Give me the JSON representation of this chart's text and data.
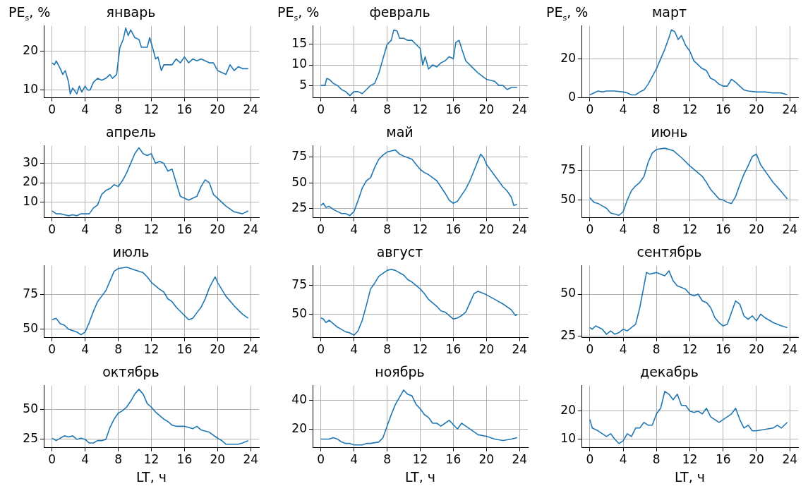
{
  "chart_data": [
    {
      "type": "line",
      "title": "январь",
      "ylabel": "PE$_{s}$, %",
      "color": "#1f77b4",
      "xlim": [
        -1,
        25
      ],
      "xticks": [
        0,
        4,
        8,
        12,
        16,
        20,
        24
      ],
      "ylim": [
        8,
        26.5
      ],
      "yticks": [
        10,
        20
      ],
      "grid": true,
      "x": [
        0,
        0.3,
        0.5,
        1,
        1.3,
        1.6,
        2,
        2.2,
        2.5,
        3,
        3.3,
        3.6,
        4,
        4.3,
        4.6,
        5,
        5.5,
        6,
        6.5,
        7,
        7.3,
        7.8,
        8.2,
        8.6,
        8.9,
        9.2,
        9.5,
        10,
        10.5,
        10.8,
        11.5,
        11.8,
        12.2,
        12.5,
        12.8,
        13.2,
        13.5,
        14.5,
        15,
        15.5,
        16,
        16.5,
        17,
        17.5,
        18,
        19,
        19.5,
        20,
        21,
        21.5,
        22,
        22.5,
        23,
        23.7
      ],
      "values": [
        17,
        16.5,
        17.5,
        15.5,
        14,
        15,
        12,
        9,
        10.5,
        9,
        11,
        9.5,
        11,
        10,
        10,
        12,
        13,
        12.5,
        13,
        14,
        13,
        14,
        21,
        23,
        26,
        24,
        25.5,
        23.5,
        23,
        21,
        21,
        23.5,
        20.5,
        18,
        18.5,
        15,
        16.5,
        16.5,
        18,
        17,
        18.5,
        17,
        18,
        17.5,
        18,
        17,
        17,
        15,
        14,
        16.5,
        15,
        16,
        15.5,
        15.5
      ]
    },
    {
      "type": "line",
      "title": "февраль",
      "ylabel": "PE$_{s}$, %",
      "color": "#1f77b4",
      "xlim": [
        -1,
        25
      ],
      "xticks": [
        0,
        4,
        8,
        12,
        16,
        20,
        24
      ],
      "ylim": [
        2,
        19.5
      ],
      "yticks": [
        5,
        10,
        15
      ],
      "grid": true,
      "x": [
        0,
        0.5,
        0.7,
        1,
        1.5,
        2,
        2.5,
        3,
        3.5,
        4,
        4.5,
        5,
        5.5,
        6,
        6.5,
        7,
        7.5,
        8,
        8.5,
        8.8,
        9.2,
        9.5,
        10,
        10.5,
        11,
        11.5,
        12,
        12.3,
        12.6,
        13,
        13.5,
        14,
        14.5,
        15,
        15.5,
        16,
        16.3,
        16.7,
        17,
        17.5,
        18,
        18.5,
        19,
        20,
        21,
        21.5,
        22,
        22.5,
        23,
        23.7
      ],
      "values": [
        5,
        5,
        6.7,
        6.5,
        5.5,
        5,
        4,
        3.5,
        2.5,
        3.5,
        3.5,
        3,
        4,
        5,
        5.5,
        8,
        11.5,
        15,
        16,
        18.5,
        18.3,
        16.5,
        16.5,
        16,
        16,
        15,
        14,
        10,
        12,
        9,
        10,
        9.5,
        10.5,
        11,
        12,
        11.5,
        15.5,
        16,
        14,
        11,
        10,
        9,
        8,
        6.5,
        6,
        5,
        5,
        4,
        4.5,
        4.5
      ]
    },
    {
      "type": "line",
      "title": "март",
      "ylabel": "PE$_{s}$, %",
      "color": "#1f77b4",
      "xlim": [
        -1,
        25
      ],
      "xticks": [
        0,
        4,
        8,
        12,
        16,
        20,
        24
      ],
      "ylim": [
        0,
        37
      ],
      "yticks": [
        0,
        20
      ],
      "grid": true,
      "x": [
        0,
        0.5,
        1,
        1.5,
        2,
        3,
        4,
        4.5,
        5,
        5.5,
        6,
        6.5,
        7,
        7.5,
        8,
        8.5,
        9,
        9.5,
        9.8,
        10.2,
        10.6,
        11,
        11.5,
        12,
        12.5,
        13,
        13.5,
        14,
        14.5,
        15,
        15.5,
        16,
        16.5,
        17,
        17.5,
        18,
        18.5,
        19,
        20,
        21,
        22,
        23,
        23.7
      ],
      "values": [
        1.5,
        2.5,
        3.5,
        3,
        3.5,
        3.5,
        3,
        2.5,
        1.5,
        1.5,
        3,
        4,
        7,
        11,
        15,
        20,
        25,
        31,
        35,
        34,
        30,
        32,
        27,
        24,
        19,
        17,
        15,
        14,
        10,
        9,
        7,
        6,
        6,
        9.5,
        8,
        6,
        4,
        3.5,
        3,
        3,
        2.5,
        2.5,
        1.5
      ]
    },
    {
      "type": "line",
      "title": "апрель",
      "color": "#1f77b4",
      "xlim": [
        -1,
        25
      ],
      "xticks": [
        0,
        4,
        8,
        12,
        16,
        20,
        24
      ],
      "ylim": [
        2,
        39
      ],
      "yticks": [
        10,
        20,
        30
      ],
      "grid": true,
      "x": [
        0,
        0.5,
        1,
        1.5,
        2,
        2.5,
        3,
        3.5,
        4,
        4.5,
        5,
        5.5,
        6,
        6.5,
        7,
        7.5,
        8,
        8.5,
        9,
        9.5,
        10,
        10.5,
        11,
        11.5,
        12,
        12.5,
        13,
        13.5,
        14,
        14.5,
        15,
        15.5,
        16,
        16.5,
        17,
        17.5,
        18,
        18.5,
        19,
        19.5,
        20,
        20.5,
        21,
        22,
        23,
        23.7
      ],
      "values": [
        5.5,
        4,
        4,
        3.5,
        3,
        3.5,
        3,
        4,
        4,
        4,
        7,
        8.5,
        14,
        16,
        17,
        19,
        18,
        21,
        25,
        30,
        35,
        38,
        35,
        34,
        35,
        30,
        31,
        30,
        26,
        27,
        20,
        13,
        12,
        11,
        12,
        13,
        18,
        21.5,
        20,
        14,
        12,
        10,
        8,
        5,
        4,
        5.5
      ]
    },
    {
      "type": "line",
      "title": "май",
      "color": "#1f77b4",
      "xlim": [
        -1,
        25
      ],
      "xticks": [
        0,
        4,
        8,
        12,
        16,
        20,
        24
      ],
      "ylim": [
        16,
        86
      ],
      "yticks": [
        25,
        50,
        75
      ],
      "grid": true,
      "x": [
        0,
        0.3,
        0.6,
        1,
        1.5,
        2,
        2.5,
        3,
        3.5,
        4,
        4.5,
        5,
        5.5,
        6,
        6.5,
        7,
        7.5,
        8,
        8.5,
        9,
        9.5,
        10,
        11,
        11.5,
        12,
        12.5,
        13,
        14,
        14.5,
        15,
        15.5,
        16,
        16.5,
        17,
        17.5,
        18,
        18.5,
        19,
        19.3,
        19.7,
        20,
        21,
        22,
        22.5,
        23,
        23.3,
        23.7
      ],
      "values": [
        28,
        30,
        26,
        27,
        24,
        22,
        20,
        20,
        18,
        22,
        33,
        45,
        52,
        55,
        65,
        73,
        77,
        80,
        81,
        82,
        78,
        76,
        73,
        68,
        63,
        60,
        58,
        52,
        46,
        40,
        33,
        30,
        32,
        38,
        44,
        52,
        62,
        72,
        78,
        74,
        68,
        57,
        46,
        42,
        36,
        28,
        29
      ]
    },
    {
      "type": "line",
      "title": "июнь",
      "color": "#1f77b4",
      "xlim": [
        -1,
        25
      ],
      "xticks": [
        0,
        4,
        8,
        12,
        16,
        20,
        24
      ],
      "ylim": [
        35,
        96
      ],
      "yticks": [
        50,
        75
      ],
      "grid": true,
      "x": [
        0,
        0.5,
        1,
        1.5,
        2,
        2.5,
        3,
        3.5,
        4,
        4.5,
        5,
        5.5,
        6,
        6.5,
        7,
        7.5,
        8,
        9,
        10,
        11,
        12,
        12.5,
        13,
        13.5,
        14,
        14.5,
        15,
        15.5,
        16,
        16.5,
        17,
        17.5,
        18,
        18.5,
        19,
        19.5,
        20,
        20.5,
        21,
        22,
        23,
        23.7
      ],
      "values": [
        52,
        48,
        47,
        45,
        43,
        39,
        38,
        37,
        40,
        50,
        58,
        62,
        65,
        70,
        82,
        90,
        93,
        94,
        92,
        86,
        79,
        76,
        73,
        70,
        65,
        59,
        55,
        51,
        50,
        48,
        47,
        53,
        63,
        72,
        79,
        87,
        89,
        80,
        75,
        65,
        57,
        51
      ]
    },
    {
      "type": "line",
      "title": "июль",
      "color": "#1f77b4",
      "xlim": [
        -1,
        25
      ],
      "xticks": [
        0,
        4,
        8,
        12,
        16,
        20,
        24
      ],
      "ylim": [
        44,
        96
      ],
      "yticks": [
        50,
        75
      ],
      "grid": true,
      "x": [
        0,
        0.5,
        1,
        1.5,
        2,
        2.5,
        3,
        3.5,
        4,
        4.5,
        5,
        5.5,
        6,
        6.5,
        7,
        7.5,
        8,
        9,
        10,
        11,
        11.5,
        12,
        13,
        13.5,
        14,
        14.5,
        15,
        16,
        16.5,
        17,
        17.5,
        18,
        18.5,
        19,
        19.7,
        20,
        20.5,
        21,
        22,
        23,
        23.7
      ],
      "values": [
        57,
        58,
        54,
        53,
        50,
        49,
        48,
        46,
        48,
        55,
        63,
        70,
        74,
        78,
        85,
        92,
        94,
        95,
        93,
        91,
        88,
        84,
        79,
        77,
        72,
        70,
        66,
        60,
        57,
        58,
        62,
        66,
        72,
        80,
        88,
        84,
        79,
        74,
        67,
        61,
        58
      ]
    },
    {
      "type": "line",
      "title": "август",
      "color": "#1f77b4",
      "xlim": [
        -1,
        25
      ],
      "xticks": [
        0,
        4,
        8,
        12,
        16,
        20,
        24
      ],
      "ylim": [
        30,
        92
      ],
      "yticks": [
        50,
        75
      ],
      "grid": true,
      "x": [
        0,
        0.3,
        0.6,
        1,
        1.5,
        2,
        2.5,
        3,
        3.5,
        4,
        4.5,
        5,
        5.5,
        6,
        6.5,
        7,
        8,
        8.5,
        9,
        10,
        10.5,
        11,
        12,
        12.5,
        13,
        13.5,
        14,
        14.5,
        15,
        16,
        16.5,
        17,
        17.5,
        18,
        18.5,
        19,
        20,
        21,
        22,
        23,
        23.5,
        23.7
      ],
      "values": [
        47,
        46,
        43,
        45,
        42,
        39,
        37,
        35,
        34,
        32,
        36,
        45,
        58,
        72,
        77,
        83,
        88,
        89,
        88,
        84,
        80,
        78,
        72,
        68,
        63,
        60,
        57,
        53,
        52,
        46,
        47,
        49,
        52,
        60,
        68,
        70,
        67,
        63,
        59,
        54,
        49,
        50
      ]
    },
    {
      "type": "line",
      "title": "сентябрь",
      "color": "#1f77b4",
      "xlim": [
        -1,
        25
      ],
      "xticks": [
        0,
        4,
        8,
        12,
        16,
        20,
        24
      ],
      "ylim": [
        24,
        67
      ],
      "yticks": [
        25,
        50
      ],
      "grid": true,
      "x": [
        0,
        0.3,
        0.7,
        1.5,
        2,
        2.5,
        3,
        3.5,
        4,
        4.5,
        5,
        5.5,
        6,
        6.5,
        6.8,
        7.2,
        8,
        8.5,
        9,
        9.5,
        10,
        10.5,
        11,
        11.5,
        12,
        12.5,
        13,
        13.5,
        14,
        14.5,
        15,
        15.5,
        16,
        16.5,
        17,
        17.5,
        18,
        18.5,
        19,
        19.5,
        20,
        20.5,
        21,
        22,
        23,
        23.7
      ],
      "values": [
        30,
        29,
        31,
        29,
        26,
        28,
        26,
        27,
        29,
        28,
        30,
        32,
        42,
        55,
        63,
        62,
        63,
        62,
        61,
        64,
        58,
        55,
        54,
        53,
        50,
        49,
        50,
        46,
        45,
        42,
        36,
        33,
        31,
        32,
        39,
        46,
        44,
        37,
        35,
        37,
        34,
        38,
        36,
        33,
        31,
        30
      ]
    },
    {
      "type": "line",
      "title": "октябрь",
      "xlabel": "LT, ч",
      "color": "#1f77b4",
      "xlim": [
        -1,
        25
      ],
      "xticks": [
        0,
        4,
        8,
        12,
        16,
        20,
        24
      ],
      "ylim": [
        18,
        70
      ],
      "yticks": [
        25,
        50
      ],
      "grid": true,
      "x": [
        0,
        0.5,
        1,
        1.5,
        2,
        2.5,
        3,
        3.5,
        4,
        4.5,
        5,
        5.5,
        6,
        6.5,
        7,
        7.5,
        8,
        8.5,
        9,
        9.5,
        10,
        10.5,
        11,
        11.5,
        12,
        12.5,
        13,
        13.5,
        14,
        14.5,
        15,
        16,
        16.5,
        17,
        17.5,
        18,
        19,
        20,
        20.5,
        21,
        22,
        22.5,
        23,
        23.7
      ],
      "values": [
        26,
        24,
        26,
        28,
        27,
        28,
        25,
        26,
        25,
        22,
        22,
        24,
        24,
        25,
        35,
        42,
        47,
        49,
        52,
        57,
        63,
        67,
        63,
        55,
        52,
        48,
        45,
        42,
        40,
        37,
        36,
        36,
        35,
        34,
        36,
        33,
        31,
        26,
        24,
        21,
        21,
        21,
        22,
        24
      ]
    },
    {
      "type": "line",
      "title": "ноябрь",
      "xlabel": "LT, ч",
      "color": "#1f77b4",
      "xlim": [
        -1,
        25
      ],
      "xticks": [
        0,
        4,
        8,
        12,
        16,
        20,
        24
      ],
      "ylim": [
        7,
        50
      ],
      "yticks": [
        20,
        40
      ],
      "grid": true,
      "x": [
        0,
        1,
        1.5,
        2,
        2.5,
        3,
        3.5,
        4,
        5,
        5.5,
        6,
        7,
        7.5,
        8,
        8.5,
        9,
        9.5,
        10,
        10.5,
        11,
        11.5,
        12,
        12.5,
        13,
        13.5,
        14,
        14.5,
        15,
        15.5,
        16,
        16.5,
        17,
        17.5,
        18,
        19,
        20,
        21,
        22,
        23,
        23.7
      ],
      "values": [
        13,
        13,
        14,
        13,
        11,
        10,
        10,
        9,
        9,
        10,
        10,
        11,
        14,
        22,
        30,
        37,
        42,
        47,
        44,
        43,
        37,
        34,
        30,
        28,
        24,
        24,
        22,
        24,
        26,
        23,
        20,
        24,
        22,
        20,
        16,
        15,
        13,
        12,
        13,
        14
      ]
    },
    {
      "type": "line",
      "title": "декабрь",
      "xlabel": "LT, ч",
      "color": "#1f77b4",
      "xlim": [
        -1,
        25
      ],
      "xticks": [
        0,
        4,
        8,
        12,
        16,
        20,
        24
      ],
      "ylim": [
        7,
        29
      ],
      "yticks": [
        10,
        20
      ],
      "grid": true,
      "x": [
        0,
        0.3,
        1,
        1.5,
        2,
        2.5,
        3,
        3.5,
        4,
        4.5,
        5,
        5.5,
        6,
        6.5,
        7,
        7.5,
        8,
        8.5,
        9,
        9.5,
        10,
        10.5,
        11,
        11.5,
        12,
        12.5,
        13,
        13.5,
        14,
        14.5,
        15,
        15.5,
        16,
        16.5,
        17,
        17.5,
        18,
        18.5,
        19,
        19.5,
        20,
        21,
        22,
        22.5,
        23,
        23.7
      ],
      "values": [
        17,
        14,
        13,
        12,
        11,
        12,
        10,
        8.5,
        9.5,
        12,
        11,
        14,
        14,
        16,
        15,
        15,
        19,
        21,
        27,
        26,
        24,
        26,
        22,
        22,
        20,
        19.5,
        20,
        19,
        21,
        18,
        17,
        16,
        17,
        18,
        19,
        21,
        17,
        14,
        15,
        13,
        13,
        13.5,
        14,
        15,
        14,
        16
      ]
    }
  ]
}
